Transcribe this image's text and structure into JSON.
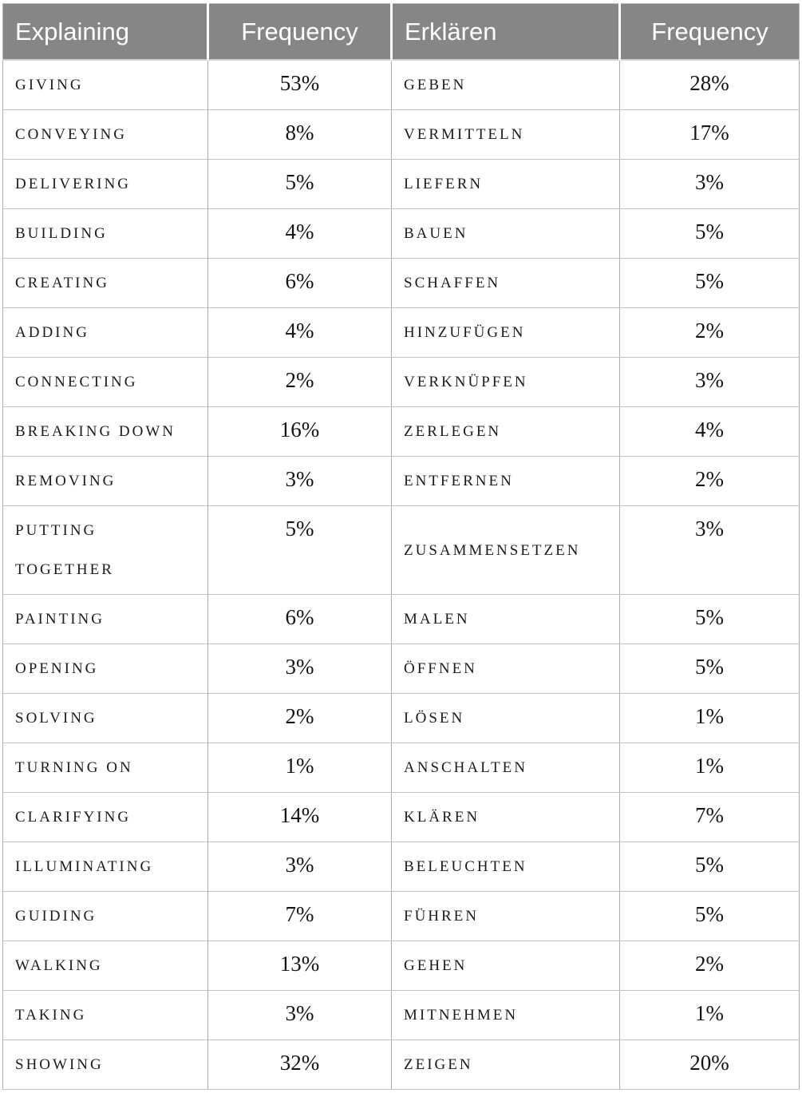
{
  "table": {
    "headers": [
      {
        "label": "Explaining",
        "align": "left"
      },
      {
        "label": "Frequency",
        "align": "center"
      },
      {
        "label": "Erklären",
        "align": "left"
      },
      {
        "label": "Frequency",
        "align": "center"
      }
    ],
    "rows": [
      {
        "en": "GIVING",
        "en_freq": "53%",
        "de": "GEBEN",
        "de_freq": "28%"
      },
      {
        "en": "CONVEYING",
        "en_freq": "8%",
        "de": "VERMITTELN",
        "de_freq": "17%"
      },
      {
        "en": "DELIVERING",
        "en_freq": "5%",
        "de": "LIEFERN",
        "de_freq": "3%"
      },
      {
        "en": "BUILDING",
        "en_freq": "4%",
        "de": "BAUEN",
        "de_freq": "5%"
      },
      {
        "en": "CREATING",
        "en_freq": "6%",
        "de": "SCHAFFEN",
        "de_freq": "5%"
      },
      {
        "en": "ADDING",
        "en_freq": "4%",
        "de": "HINZUFÜGEN",
        "de_freq": "2%"
      },
      {
        "en": "CONNECTING",
        "en_freq": "2%",
        "de": "VERKNÜPFEN",
        "de_freq": "3%"
      },
      {
        "en": "BREAKING DOWN",
        "en_freq": "16%",
        "de": "ZERLEGEN",
        "de_freq": "4%"
      },
      {
        "en": "REMOVING",
        "en_freq": "3%",
        "de": "ENTFERNEN",
        "de_freq": "2%"
      },
      {
        "en": "PUTTING\nTOGETHER",
        "en_freq": "5%",
        "de": "ZUSAMMENSETZEN",
        "de_freq": "3%"
      },
      {
        "en": "PAINTING",
        "en_freq": "6%",
        "de": "MALEN",
        "de_freq": "5%"
      },
      {
        "en": "OPENING",
        "en_freq": "3%",
        "de": "ÖFFNEN",
        "de_freq": "5%"
      },
      {
        "en": "SOLVING",
        "en_freq": "2%",
        "de": "LÖSEN",
        "de_freq": "1%"
      },
      {
        "en": "TURNING ON",
        "en_freq": "1%",
        "de": "ANSCHALTEN",
        "de_freq": "1%"
      },
      {
        "en": "CLARIFYING",
        "en_freq": "14%",
        "de": "KLÄREN",
        "de_freq": "7%"
      },
      {
        "en": "ILLUMINATING",
        "en_freq": "3%",
        "de": "BELEUCHTEN",
        "de_freq": "5%"
      },
      {
        "en": "GUIDING",
        "en_freq": "7%",
        "de": "FÜHREN",
        "de_freq": "5%"
      },
      {
        "en": "WALKING",
        "en_freq": "13%",
        "de": "GEHEN",
        "de_freq": "2%"
      },
      {
        "en": "TAKING",
        "en_freq": "3%",
        "de": "MITNEHMEN",
        "de_freq": "1%"
      },
      {
        "en": "SHOWING",
        "en_freq": "32%",
        "de": "ZEIGEN",
        "de_freq": "20%"
      }
    ]
  },
  "colors": {
    "header_background": "#868686",
    "header_text": "#ffffff",
    "body_text": "#1b1b1b",
    "cell_border_vertical": "#acacac",
    "cell_border_horizontal": "#c2c2c2"
  },
  "chart_data": {
    "type": "table",
    "columns": [
      "Explaining",
      "Frequency",
      "Erklären",
      "Frequency"
    ],
    "english_terms": [
      "GIVING",
      "CONVEYING",
      "DELIVERING",
      "BUILDING",
      "CREATING",
      "ADDING",
      "CONNECTING",
      "BREAKING DOWN",
      "REMOVING",
      "PUTTING TOGETHER",
      "PAINTING",
      "OPENING",
      "SOLVING",
      "TURNING ON",
      "CLARIFYING",
      "ILLUMINATING",
      "GUIDING",
      "WALKING",
      "TAKING",
      "SHOWING"
    ],
    "english_frequency_pct": [
      53,
      8,
      5,
      4,
      6,
      4,
      2,
      16,
      3,
      5,
      6,
      3,
      2,
      1,
      14,
      3,
      7,
      13,
      3,
      32
    ],
    "german_terms": [
      "GEBEN",
      "VERMITTELN",
      "LIEFERN",
      "BAUEN",
      "SCHAFFEN",
      "HINZUFÜGEN",
      "VERKNÜPFEN",
      "ZERLEGEN",
      "ENTFERNEN",
      "ZUSAMMENSETZEN",
      "MALEN",
      "ÖFFNEN",
      "LÖSEN",
      "ANSCHALTEN",
      "KLÄREN",
      "BELEUCHTEN",
      "FÜHREN",
      "GEHEN",
      "MITNEHMEN",
      "ZEIGEN"
    ],
    "german_frequency_pct": [
      28,
      17,
      3,
      5,
      5,
      2,
      3,
      4,
      2,
      3,
      5,
      5,
      1,
      1,
      7,
      5,
      5,
      2,
      1,
      20
    ]
  }
}
